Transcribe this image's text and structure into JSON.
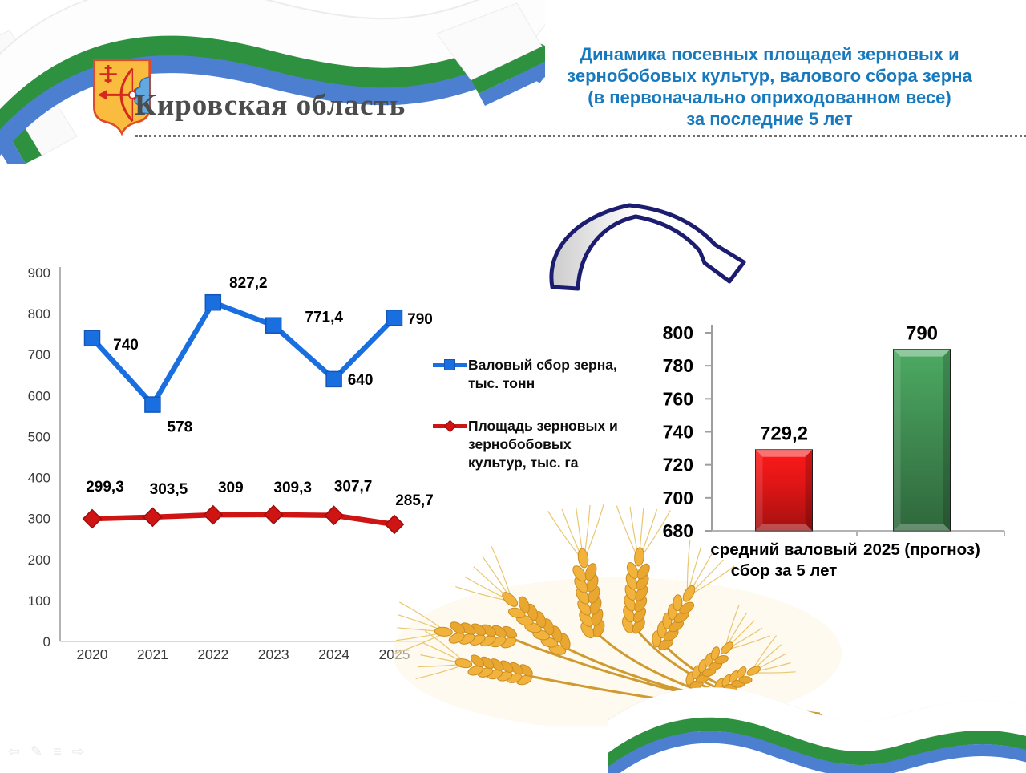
{
  "header": {
    "region_title": "Кировская область",
    "slide_title_lines": [
      "Динамика посевных площадей зерновых и",
      "зернобобовых культур, валового сбора зерна",
      "(в первоначально оприходованном весе)",
      "за последние 5 лет"
    ],
    "title_color": "#187abe",
    "coat_of_arms_name": "kirov-oblast-coat-of-arms",
    "ribbon_colors": {
      "white": "#ffffff",
      "green": "#2d9140",
      "blue": "#4d7fd0"
    }
  },
  "chart_data": [
    {
      "type": "line",
      "categories": [
        "2020",
        "2021",
        "2022",
        "2023",
        "2024",
        "2025"
      ],
      "series": [
        {
          "name": "Валовый сбор зерна, тыс. тонн",
          "values": [
            740,
            578,
            827.2,
            771.4,
            640,
            790
          ],
          "labels": [
            "740",
            "578",
            "827,2",
            "771,4",
            "640",
            "790"
          ],
          "color": "#1a6fe0",
          "edge": "#1356b8",
          "marker": "square"
        },
        {
          "name": "Площадь зерновых и зернобобовых культур, тыс. га",
          "values": [
            299.3,
            303.5,
            309,
            309.3,
            307.7,
            285.7
          ],
          "labels": [
            "299,3",
            "303,5",
            "309",
            "309,3",
            "307,7",
            "285,7"
          ],
          "color": "#cf1414",
          "edge": "#9c0d0d",
          "marker": "diamond"
        }
      ],
      "ylim": [
        0,
        900
      ],
      "yticks": [
        0,
        100,
        200,
        300,
        400,
        500,
        600,
        700,
        800,
        900
      ],
      "grid": false,
      "legend_position": "right"
    },
    {
      "type": "bar",
      "categories": [
        "средний валовый сбор за 5 лет",
        "2025 (прогноз)"
      ],
      "categories_wrapped": [
        [
          "средний валовый",
          "сбор за 5 лет"
        ],
        [
          "2025 (прогноз)"
        ]
      ],
      "values": [
        729.2,
        790
      ],
      "labels": [
        "729,2",
        "790"
      ],
      "colors": [
        "#dd1515",
        "#3f8b51"
      ],
      "ylim": [
        680,
        800
      ],
      "yticks": [
        680,
        700,
        720,
        740,
        760,
        780,
        800
      ],
      "grid": false
    }
  ],
  "decorations": {
    "curved_arrow": "curved-right-down-arrow",
    "wheat": "golden-wheat-ears",
    "ribbon_bottom": "white-green-blue wavy ribbon"
  },
  "footer": {
    "toolbar_icons": [
      {
        "name": "previous-slide",
        "glyph": "⇦"
      },
      {
        "name": "pen",
        "glyph": "✎"
      },
      {
        "name": "menu",
        "glyph": "≡"
      },
      {
        "name": "next-slide",
        "glyph": "⇨"
      }
    ]
  }
}
